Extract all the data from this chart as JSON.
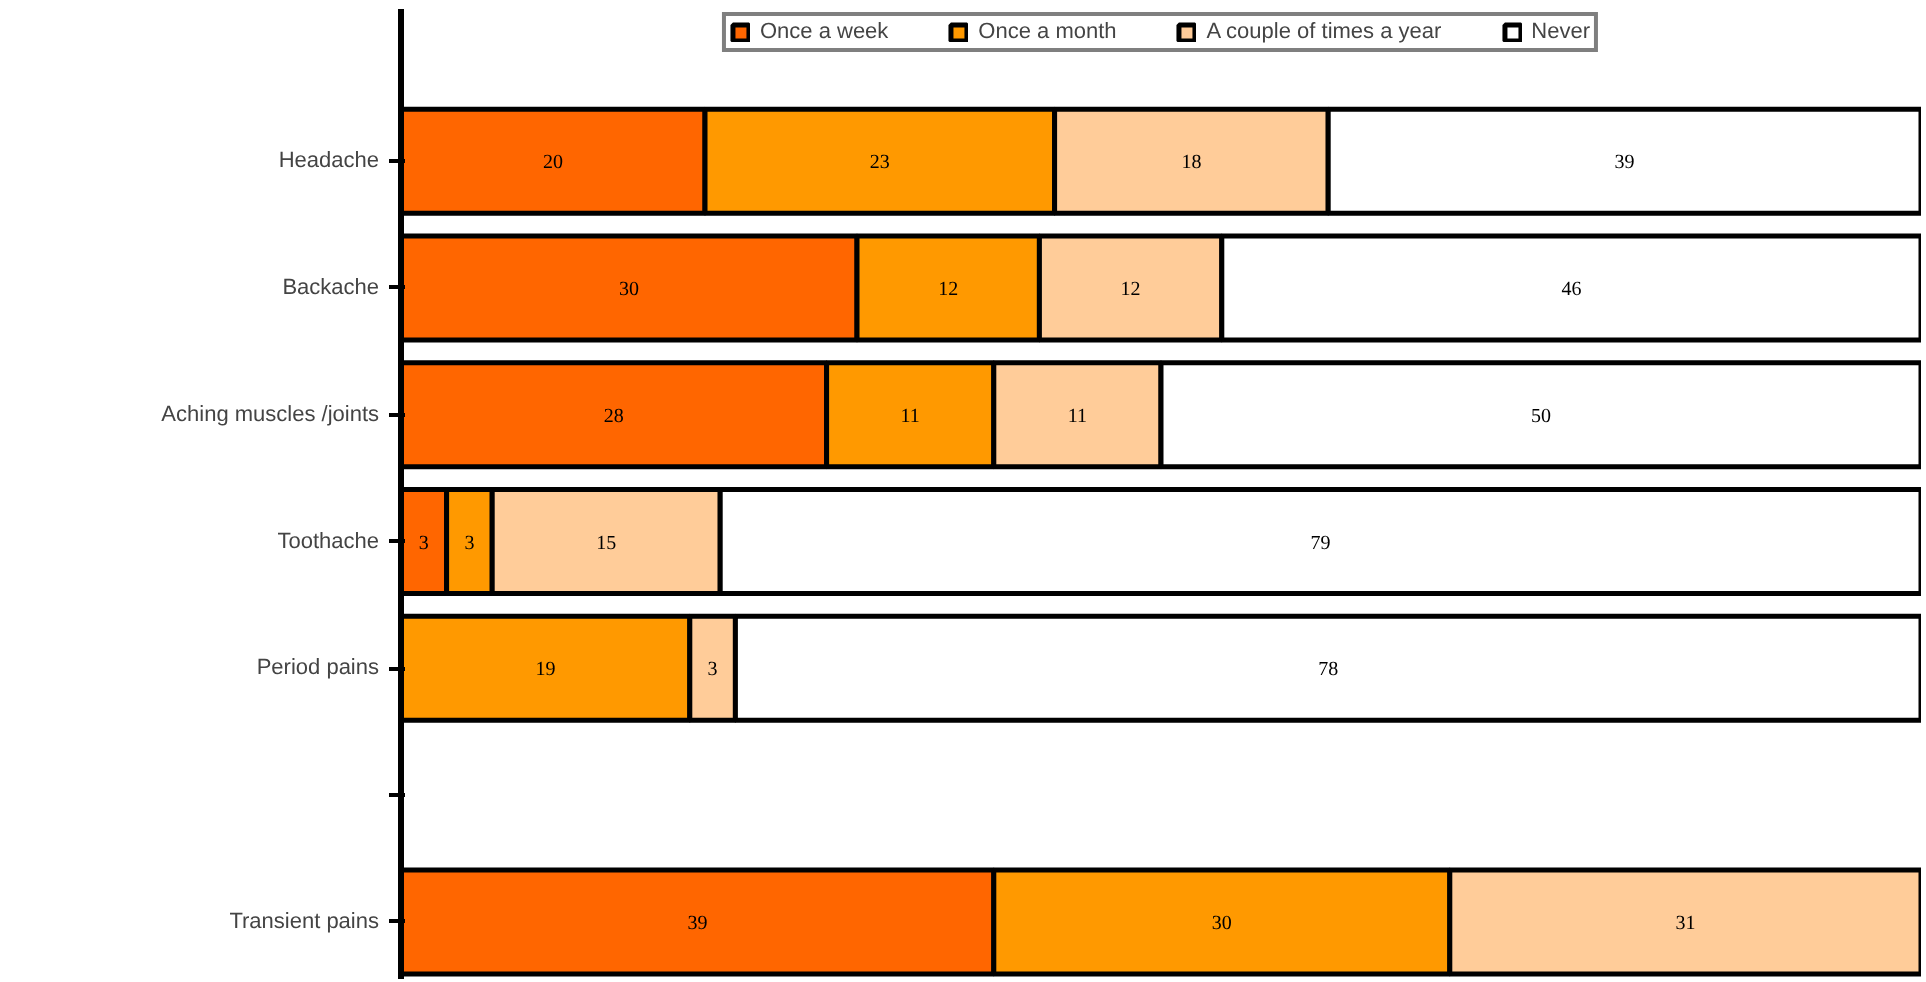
{
  "chart_data": {
    "type": "bar",
    "orientation": "horizontal",
    "stacked": true,
    "data_labels": true,
    "legend": "top",
    "grid": false,
    "tick_labels": "y",
    "xlim": [
      0,
      100
    ],
    "categories": [
      "Headache",
      "Backache",
      "Aching muscles /joints",
      "Toothache",
      "Period pains",
      null,
      "Transient pains"
    ],
    "series": [
      {
        "name": "Once a week",
        "color": "#ff6600",
        "values": [
          20,
          30,
          28,
          3,
          null,
          null,
          39
        ]
      },
      {
        "name": "Once a month",
        "color": "#ff9900",
        "values": [
          23,
          12,
          11,
          3,
          19,
          null,
          30
        ]
      },
      {
        "name": "A couple of times a year",
        "color": "#ffcc99",
        "values": [
          18,
          12,
          11,
          15,
          3,
          null,
          31
        ]
      },
      {
        "name": "Never",
        "color": "#ffffff",
        "values": [
          39,
          46,
          50,
          79,
          78,
          null,
          null
        ]
      }
    ]
  }
}
